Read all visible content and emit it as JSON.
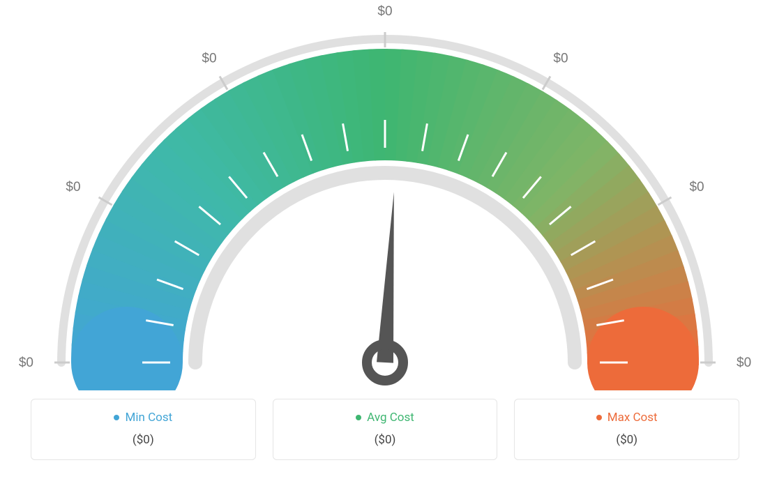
{
  "gauge": {
    "type": "gauge",
    "needle_angle_deg": -87,
    "outer_ring_color": "#e0e0e0",
    "inner_ring_color": "#e0e0e0",
    "colors": {
      "min": "#42a5d6",
      "mid_left": "#3fb9a8",
      "avg": "#3eb671",
      "mid_right": "#7fb567",
      "max": "#ed6b3a"
    },
    "tick_color_inner": "#ffffff",
    "tick_color_outer": "#cccccc",
    "scale_labels": [
      "$0",
      "$0",
      "$0",
      "$0",
      "$0",
      "$0",
      "$0"
    ],
    "scale_label_color": "#777777",
    "scale_label_fontsize": 19,
    "needle_color": "#555555",
    "background_color": "#ffffff"
  },
  "legend": {
    "items": [
      {
        "label": "Min Cost",
        "color": "#42a5d6",
        "value": "($0)"
      },
      {
        "label": "Avg Cost",
        "color": "#3eb671",
        "value": "($0)"
      },
      {
        "label": "Max Cost",
        "color": "#ed6b3a",
        "value": "($0)"
      }
    ],
    "box_border_color": "#e5e5e5",
    "label_fontsize": 17,
    "value_fontsize": 17
  }
}
